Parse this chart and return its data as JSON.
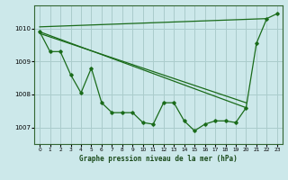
{
  "background_color": "#cce8ea",
  "grid_color": "#aacccc",
  "line_color": "#1a6b1a",
  "marker_color": "#1a6b1a",
  "xlabel": "Graphe pression niveau de la mer (hPa)",
  "ylim": [
    1006.5,
    1010.7
  ],
  "xlim": [
    -0.5,
    23.5
  ],
  "yticks": [
    1007,
    1008,
    1009,
    1010
  ],
  "xticks": [
    0,
    1,
    2,
    3,
    4,
    5,
    6,
    7,
    8,
    9,
    10,
    11,
    12,
    13,
    14,
    15,
    16,
    17,
    18,
    19,
    20,
    21,
    22,
    23
  ],
  "series_zigzag": {
    "x": [
      0,
      1,
      2,
      3,
      4,
      5,
      6,
      7,
      8,
      9,
      10,
      11,
      12,
      13,
      14,
      15,
      16,
      17,
      18,
      19,
      20,
      21,
      22,
      23
    ],
    "y": [
      1009.9,
      1009.3,
      1009.3,
      1008.6,
      1008.05,
      1008.8,
      1007.75,
      1007.45,
      1007.45,
      1007.45,
      1007.15,
      1007.1,
      1007.75,
      1007.75,
      1007.2,
      1006.9,
      1007.1,
      1007.2,
      1007.2,
      1007.15,
      1007.6,
      1009.55,
      1010.3,
      1010.45
    ]
  },
  "series_upper_line": {
    "x": [
      0,
      22
    ],
    "y": [
      1010.05,
      1010.3
    ]
  },
  "series_lower_line1": {
    "x": [
      0,
      20
    ],
    "y": [
      1009.9,
      1007.6
    ]
  },
  "series_lower_line2": {
    "x": [
      0,
      20
    ],
    "y": [
      1009.85,
      1007.75
    ]
  }
}
